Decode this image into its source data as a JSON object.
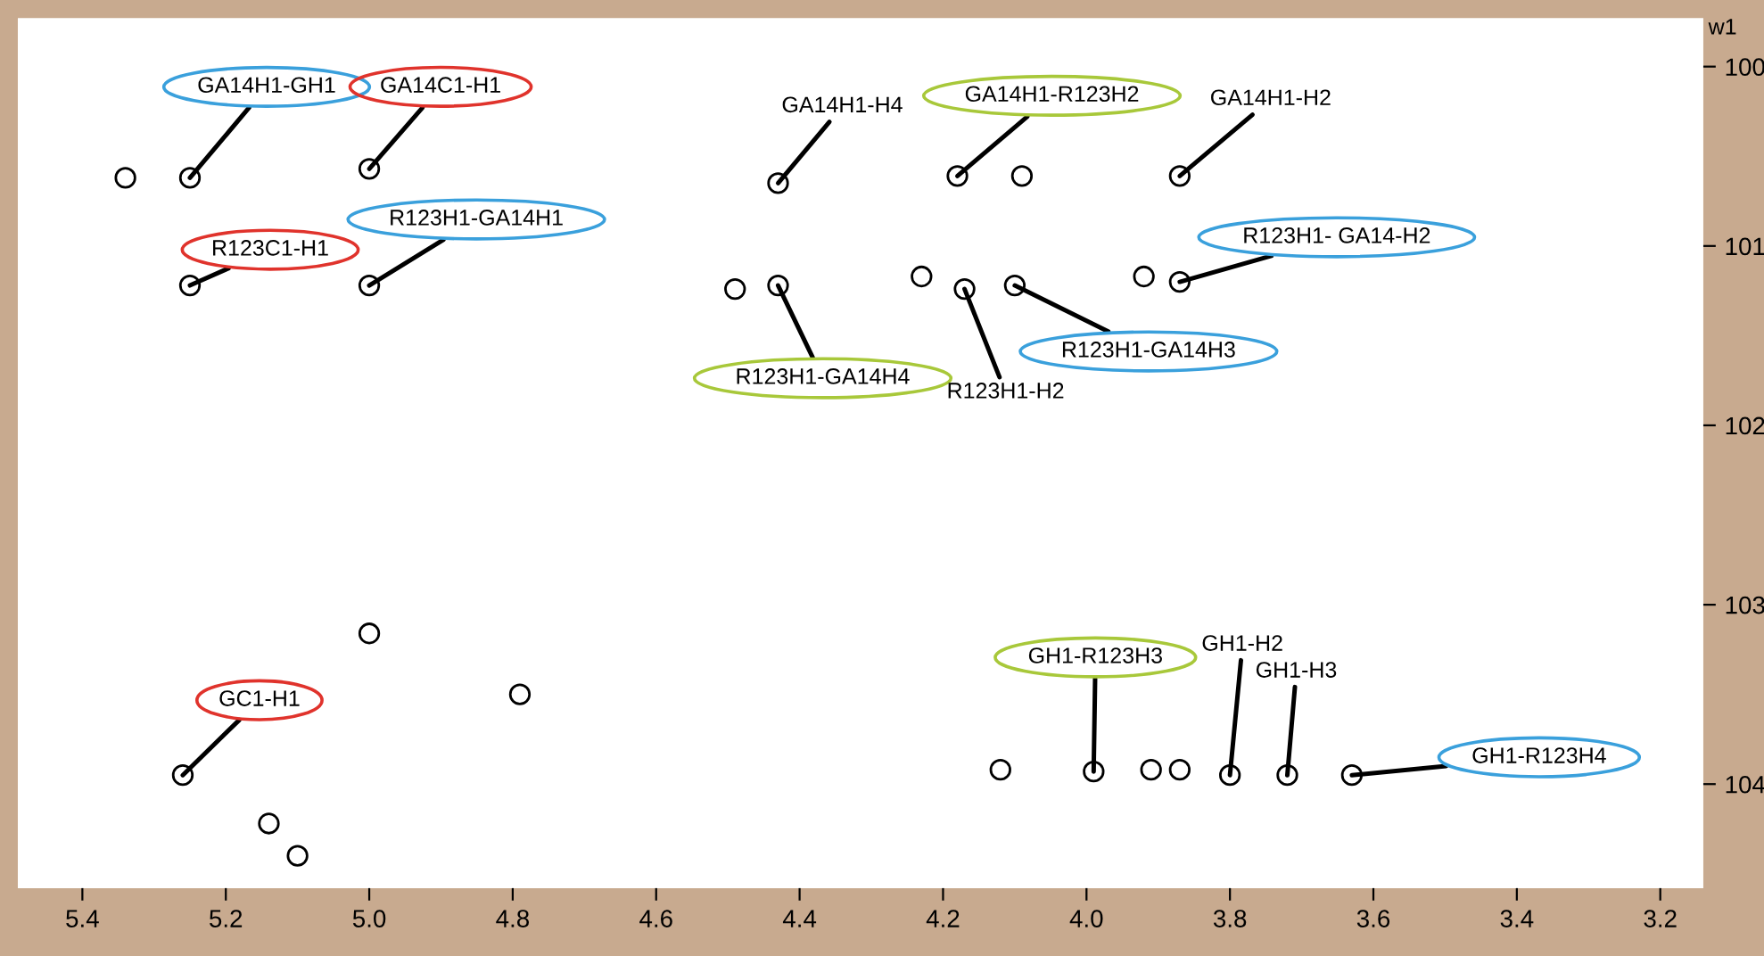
{
  "chart_data": {
    "type": "scatter",
    "ylabel": "w1",
    "xlim": [
      5.49,
      3.14
    ],
    "ylim": [
      104.58,
      99.73
    ],
    "xticks": [
      5.4,
      5.2,
      {
        "value": 5.0,
        "label": "5.0"
      },
      4.8,
      4.6,
      4.4,
      4.2,
      {
        "value": 4.0,
        "label": "4.0"
      },
      3.8,
      3.6,
      3.4,
      3.2
    ],
    "yticks": [
      100,
      101,
      102,
      103,
      104
    ],
    "grid": false,
    "legend": false,
    "marker": "circle",
    "series": [
      {
        "color": "#000000",
        "x": [
          5.25,
          5.0,
          5.25,
          5.0,
          4.43,
          4.18,
          3.87,
          3.87,
          4.43,
          4.17,
          4.1,
          5.26,
          3.99,
          3.8,
          3.72,
          3.63
        ],
        "values": [
          100.62,
          100.57,
          101.22,
          101.22,
          100.65,
          100.61,
          100.61,
          101.2,
          101.22,
          101.24,
          101.22,
          103.95,
          103.93,
          103.95,
          103.95,
          103.95
        ]
      },
      {
        "color": "#000000",
        "x": [
          5.34,
          4.79,
          5.0,
          5.14,
          5.1,
          4.49,
          4.23,
          4.09,
          3.92,
          4.12,
          3.91,
          3.87
        ],
        "values": [
          100.62,
          103.5,
          103.16,
          104.22,
          104.4,
          101.24,
          101.17,
          100.61,
          101.17,
          103.92,
          103.92,
          103.92
        ]
      }
    ],
    "annotations": [
      {
        "text": "GA14H1-GH1",
        "x": 5.25,
        "y": 100.62
      },
      {
        "text": "GA14C1-H1",
        "x": 5.0,
        "y": 100.57
      },
      {
        "text": "R123C1-H1",
        "x": 5.25,
        "y": 101.22
      },
      {
        "text": "R123H1-GA14H1",
        "x": 5.0,
        "y": 101.22
      },
      {
        "text": "GA14H1-H4",
        "x": 4.43,
        "y": 100.65
      },
      {
        "text": "GA14H1-R123H2",
        "x": 4.18,
        "y": 100.61
      },
      {
        "text": "GA14H1-H2",
        "x": 3.87,
        "y": 100.61
      },
      {
        "text": "R123H1- GA14-H2",
        "x": 3.87,
        "y": 101.2
      },
      {
        "text": "R123H1-GA14H4",
        "x": 4.43,
        "y": 101.22
      },
      {
        "text": "R123H1-H2",
        "x": 4.17,
        "y": 101.24
      },
      {
        "text": "R123H1-GA14H3",
        "x": 4.1,
        "y": 101.22
      },
      {
        "text": "GC1-H1",
        "x": 5.26,
        "y": 103.95
      },
      {
        "text": "GH1-R123H3",
        "x": 3.99,
        "y": 103.93
      },
      {
        "text": "GH1-H2",
        "x": 3.8,
        "y": 103.95
      },
      {
        "text": "GH1-H3",
        "x": 3.72,
        "y": 103.95
      },
      {
        "text": "GH1-R123H4",
        "x": 3.63,
        "y": 103.95
      }
    ]
  }
}
